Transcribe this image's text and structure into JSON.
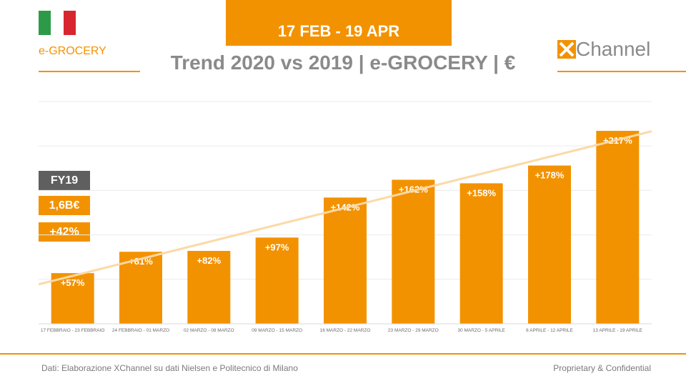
{
  "header": {
    "brand_label": "e-GROCERY",
    "date_range": "17 FEB - 19 APR",
    "title": "Trend 2020 vs 2019 | e-GROCERY | €",
    "logo_text": "Channel"
  },
  "kpis": {
    "fy_label": "FY19",
    "value": "1,6B€",
    "growth": "+42%"
  },
  "colors": {
    "accent": "#f39200",
    "dark_badge": "#5f5f5f",
    "title_gray": "#8a8a8a",
    "trend_line": "#fbd9a6"
  },
  "chart_data": {
    "type": "bar",
    "categories": [
      "17 FEBBRAIO - 23 FEBBRAIO",
      "24 FEBBRAIO - 01 MARZO",
      "02 MARZO - 08 MARZO",
      "09 MARZO - 15 MARZO",
      "16 MARZO - 22 MARZO",
      "23 MARZO - 29 MARZO",
      "30 MARZO - 5 APRILE",
      "6 APRILE - 12 APRILE",
      "13 APRILE - 19 APRILE"
    ],
    "values": [
      57,
      81,
      82,
      97,
      142,
      162,
      158,
      178,
      217
    ],
    "labels": [
      "+57%",
      "+81%",
      "+82%",
      "+97%",
      "+142%",
      "+162%",
      "+158%",
      "+178%",
      "+217%"
    ],
    "title": "Trend 2020 vs 2019 | e-GROCERY | €",
    "xlabel": "",
    "ylabel": "",
    "ylim": [
      0,
      250
    ],
    "grid": true,
    "trendline": true
  },
  "footer": {
    "source": "Dati: Elaborazione XChannel su dati Nielsen e Politecnico di Milano",
    "confidential": "Proprietary & Confidential"
  }
}
